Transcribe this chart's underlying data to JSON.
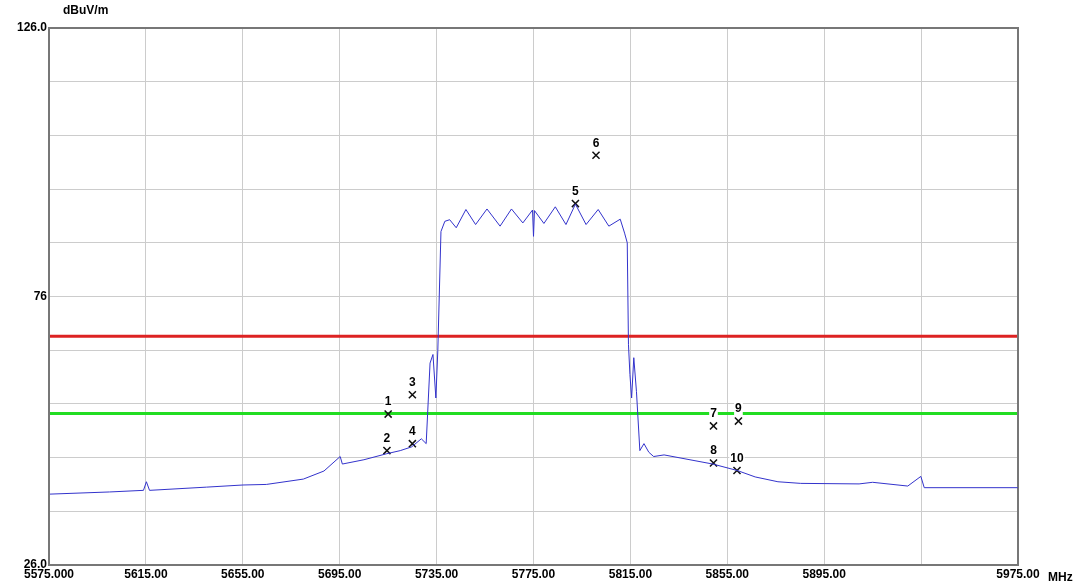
{
  "chart_data": {
    "type": "line",
    "xlabel": "MHz",
    "ylabel": "dBuV/m",
    "xlim": [
      5575,
      5975
    ],
    "ylim": [
      26,
      126
    ],
    "xticks": [
      {
        "value": 5575,
        "label": "5575.000"
      },
      {
        "value": 5615,
        "label": "5615.00"
      },
      {
        "value": 5655,
        "label": "5655.00"
      },
      {
        "value": 5695,
        "label": "5695.00"
      },
      {
        "value": 5735,
        "label": "5735.00"
      },
      {
        "value": 5775,
        "label": "5775.00"
      },
      {
        "value": 5815,
        "label": "5815.00"
      },
      {
        "value": 5855,
        "label": "5855.00"
      },
      {
        "value": 5895,
        "label": "5895.00"
      },
      {
        "value": 5935,
        "label": null
      },
      {
        "value": 5975,
        "label": "5975.00"
      }
    ],
    "yticks": [
      {
        "value": 26,
        "label": "26.0"
      },
      {
        "value": 36,
        "label": null
      },
      {
        "value": 46,
        "label": null
      },
      {
        "value": 56,
        "label": null
      },
      {
        "value": 66,
        "label": null
      },
      76,
      {
        "value": 86,
        "label": null
      },
      {
        "value": 96,
        "label": null
      },
      {
        "value": 106,
        "label": null
      },
      {
        "value": 116,
        "label": null
      },
      {
        "value": 126,
        "label": "126.0"
      }
    ],
    "grid": true,
    "legend": false,
    "series": [
      {
        "type": "line",
        "color": "#3333cc",
        "marker": "none",
        "x": [
          5575.4,
          5600,
          5614,
          5615.2,
          5616.5,
          5640,
          5655.1,
          5664.7,
          5680,
          5688.5,
          5695.2,
          5696.1,
          5705,
          5714.2,
          5720,
          5724.7,
          5728.7,
          5730.7,
          5732.3,
          5733.5,
          5734.7,
          5735.5,
          5736.8,
          5738.4,
          5740.4,
          5743.1,
          5747.1,
          5751.1,
          5755.8,
          5761.2,
          5765.9,
          5770.6,
          5774.6,
          5775,
          5775.4,
          5779.3,
          5784,
          5788.4,
          5792.3,
          5796.7,
          5801.7,
          5806.1,
          5810.8,
          5812.6,
          5813.7,
          5814.2,
          5814.8,
          5815.5,
          5816.4,
          5817.5,
          5818.9,
          5820.6,
          5822.6,
          5824.6,
          5828.9,
          5849,
          5859.1,
          5866.5,
          5875.9,
          5885.3,
          5909.4,
          5915,
          5929.5,
          5934.9,
          5936.3,
          5974.9
        ],
        "values": [
          39.2,
          39.6,
          39.9,
          41.5,
          39.9,
          40.5,
          40.9,
          41,
          42,
          43.5,
          46.2,
          44.8,
          45.6,
          46.7,
          47.3,
          48,
          49.5,
          48.6,
          63.6,
          65.2,
          57.1,
          65.9,
          88.1,
          90,
          90.3,
          88.8,
          92.2,
          89.4,
          92.3,
          89.1,
          92.3,
          89.7,
          92.1,
          87.2,
          92,
          89.6,
          92.7,
          89.4,
          93.2,
          89.4,
          92.2,
          89.1,
          90.4,
          87.8,
          86,
          67.1,
          61.5,
          57.1,
          64.6,
          58.3,
          47.3,
          48.6,
          47,
          46.2,
          46.5,
          44.8,
          43.6,
          42.4,
          41.5,
          41.2,
          41.1,
          41.4,
          40.7,
          42.5,
          40.4,
          40.4
        ]
      },
      {
        "type": "scatter",
        "color": "#111111",
        "marker": "cross",
        "x": [
          5715,
          5714.5,
          5725,
          5725,
          5792.3,
          5800.8,
          5849.3,
          5849.3,
          5859.6,
          5859
        ],
        "values": [
          54.1,
          47.3,
          57.7,
          48.6,
          93.3,
          102.3,
          51.9,
          45,
          52.8,
          43.6
        ]
      }
    ],
    "ref_lines": [
      {
        "axis": "y",
        "value": 68.6,
        "color": "#dd2222"
      },
      {
        "axis": "y",
        "value": 54.2,
        "color": "#22dd22"
      }
    ],
    "annotations": [
      {
        "text": "1",
        "x": 5715,
        "y": 54.1
      },
      {
        "text": "2",
        "x": 5714.5,
        "y": 47.3
      },
      {
        "text": "3",
        "x": 5725,
        "y": 57.7
      },
      {
        "text": "4",
        "x": 5725,
        "y": 48.6
      },
      {
        "text": "5",
        "x": 5792.3,
        "y": 93.3
      },
      {
        "text": "6",
        "x": 5800.8,
        "y": 102.3
      },
      {
        "text": "7",
        "x": 5849.3,
        "y": 51.9
      },
      {
        "text": "8",
        "x": 5849.3,
        "y": 45
      },
      {
        "text": "9",
        "x": 5859.6,
        "y": 52.8
      },
      {
        "text": "10",
        "x": 5859,
        "y": 43.6
      }
    ]
  }
}
